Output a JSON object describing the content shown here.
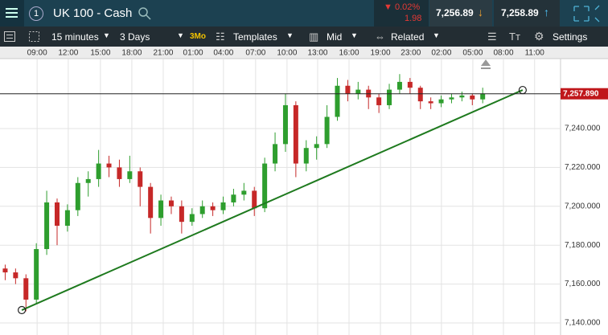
{
  "header": {
    "alerts": "1",
    "title": "UK 100 - Cash",
    "change_pct": "0.02%",
    "change_abs": "1.98",
    "sell": "7,256.89",
    "buy": "7,258.89"
  },
  "toolbar": {
    "interval": "15 minutes",
    "range": "3 Days",
    "range_badge": "3Mo",
    "templates": "Templates",
    "price_type": "Mid",
    "related": "Related",
    "settings": "Settings"
  },
  "chart_data": {
    "type": "candlestick",
    "x": [
      2,
      6,
      10,
      14,
      18,
      22,
      26,
      30,
      34,
      38,
      42,
      46,
      50,
      54,
      58,
      62,
      66,
      70,
      74,
      78,
      82,
      86,
      90,
      94,
      98,
      102,
      106,
      110,
      114,
      118,
      122,
      126,
      130,
      134,
      138,
      142,
      146,
      150,
      154,
      158,
      162,
      166,
      170,
      174,
      178,
      182,
      186
    ],
    "open": [
      7168,
      7166,
      7163,
      7152,
      7178,
      7202,
      7190,
      7198,
      7212,
      7214,
      7222,
      7220,
      7214,
      7218,
      7210,
      7194,
      7203,
      7200,
      7192,
      7196,
      7200,
      7198,
      7202,
      7206,
      7208,
      7199,
      7222,
      7232,
      7252,
      7222,
      7230,
      7232,
      7246,
      7262,
      7258,
      7260,
      7256,
      7252,
      7260,
      7264,
      7261,
      7254,
      7253,
      7255,
      7256,
      7257,
      7255
    ],
    "high": [
      7170,
      7168,
      7165,
      7181,
      7208,
      7204,
      7201,
      7215,
      7218,
      7229,
      7226,
      7224,
      7226,
      7220,
      7212,
      7206,
      7205,
      7203,
      7199,
      7203,
      7202,
      7205,
      7209,
      7212,
      7210,
      7225,
      7238,
      7258,
      7254,
      7234,
      7236,
      7252,
      7266,
      7265,
      7264,
      7262,
      7258,
      7263,
      7268,
      7266,
      7262,
      7256,
      7257,
      7258,
      7259,
      7258,
      7261
    ],
    "low": [
      7162,
      7160,
      7146,
      7150,
      7175,
      7180,
      7187,
      7195,
      7205,
      7210,
      7215,
      7210,
      7212,
      7200,
      7186,
      7190,
      7196,
      7186,
      7190,
      7194,
      7195,
      7196,
      7200,
      7203,
      7195,
      7197,
      7218,
      7228,
      7215,
      7218,
      7224,
      7230,
      7244,
      7254,
      7255,
      7250,
      7248,
      7250,
      7258,
      7258,
      7250,
      7250,
      7251,
      7253,
      7254,
      7252,
      7253
    ],
    "close": [
      7166,
      7163,
      7152,
      7178,
      7202,
      7190,
      7198,
      7212,
      7214,
      7222,
      7220,
      7214,
      7218,
      7210,
      7194,
      7203,
      7200,
      7192,
      7196,
      7200,
      7198,
      7202,
      7206,
      7208,
      7199,
      7222,
      7232,
      7252,
      7222,
      7230,
      7232,
      7246,
      7262,
      7258,
      7260,
      7256,
      7252,
      7260,
      7264,
      7261,
      7254,
      7253,
      7255,
      7256,
      7257,
      7255,
      7258
    ],
    "up_color": "#2e9e2e",
    "down_color": "#c62828",
    "xlim": [
      0,
      216
    ],
    "xticks": [
      {
        "value": 14.3,
        "label": "09:00"
      },
      {
        "value": 26.3,
        "label": "12:00"
      },
      {
        "value": 38.7,
        "label": "15:00"
      },
      {
        "value": 50.8,
        "label": "18:00"
      },
      {
        "value": 62.9,
        "label": "21:00"
      },
      {
        "value": 74.4,
        "label": "01:00"
      },
      {
        "value": 86.1,
        "label": "04:00"
      },
      {
        "value": 98.5,
        "label": "07:00"
      },
      {
        "value": 110.6,
        "label": "10:00"
      },
      {
        "value": 122.4,
        "label": "13:00"
      },
      {
        "value": 134.5,
        "label": "16:00"
      },
      {
        "value": 146.6,
        "label": "19:00"
      },
      {
        "value": 158.3,
        "label": "23:00"
      },
      {
        "value": 170.1,
        "label": "02:00"
      },
      {
        "value": 182.2,
        "label": "05:00"
      },
      {
        "value": 194,
        "label": "08:00"
      },
      {
        "value": 206,
        "label": "11:00"
      }
    ],
    "ylim": [
      7133.8,
      7275.95
    ],
    "yticks": [
      {
        "value": 7140,
        "label": "7,140.000"
      },
      {
        "value": 7160,
        "label": "7,160.000"
      },
      {
        "value": 7180,
        "label": "7,180.000"
      },
      {
        "value": 7200,
        "label": "7,200.000"
      },
      {
        "value": 7220,
        "label": "7,220.000"
      },
      {
        "value": 7240,
        "label": "7,240.000"
      }
    ],
    "grid": true,
    "last_price": 7257.89,
    "last_price_label": "7,257.890",
    "trendline": {
      "x": [
        8.4,
        201.4
      ],
      "y": [
        7146.6,
        7259.8
      ],
      "color": "#1e7a1e"
    }
  }
}
